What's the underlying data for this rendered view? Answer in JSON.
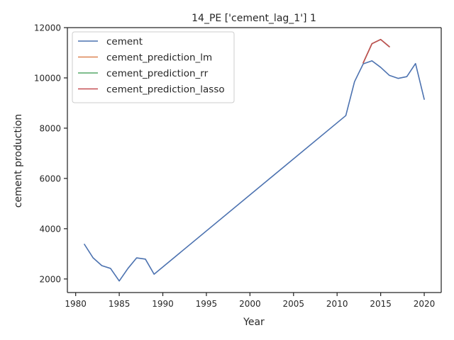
{
  "chart_data": {
    "type": "line",
    "title": "14_PE ['cement_lag_1'] 1",
    "xlabel": "Year",
    "ylabel": "cement production",
    "xlim": [
      1979.05,
      2021.95
    ],
    "ylim": [
      1460,
      12000
    ],
    "xticks": [
      1980,
      1985,
      1990,
      1995,
      2000,
      2005,
      2010,
      2015,
      2020
    ],
    "yticks": [
      2000,
      4000,
      6000,
      8000,
      10000,
      12000
    ],
    "grid": false,
    "legend_position": "upper left",
    "series": [
      {
        "name": "cement",
        "color": "#4c72b0",
        "x": [
          1981,
          1982,
          1983,
          1984,
          1985,
          1986,
          1987,
          1988,
          1989,
          2011,
          2012,
          2013,
          2014,
          2015,
          2016,
          2017,
          2018,
          2019,
          2020
        ],
        "y": [
          3380,
          2840,
          2530,
          2420,
          1920,
          2420,
          2840,
          2790,
          2190,
          8500,
          9850,
          10560,
          10680,
          10420,
          10100,
          9980,
          10050,
          10570,
          9150
        ]
      },
      {
        "name": "cement_prediction_lm",
        "color": "#dd8452",
        "x": [
          2013,
          2014,
          2015,
          2016
        ],
        "y": [
          10600,
          11360,
          11530,
          11240
        ]
      },
      {
        "name": "cement_prediction_rr",
        "color": "#55a868",
        "x": [
          2013,
          2014,
          2015,
          2016
        ],
        "y": [
          10600,
          11360,
          11530,
          11240
        ]
      },
      {
        "name": "cement_prediction_lasso",
        "color": "#c44e52",
        "x": [
          2013,
          2014,
          2015,
          2016
        ],
        "y": [
          10600,
          11360,
          11530,
          11240
        ]
      }
    ]
  }
}
